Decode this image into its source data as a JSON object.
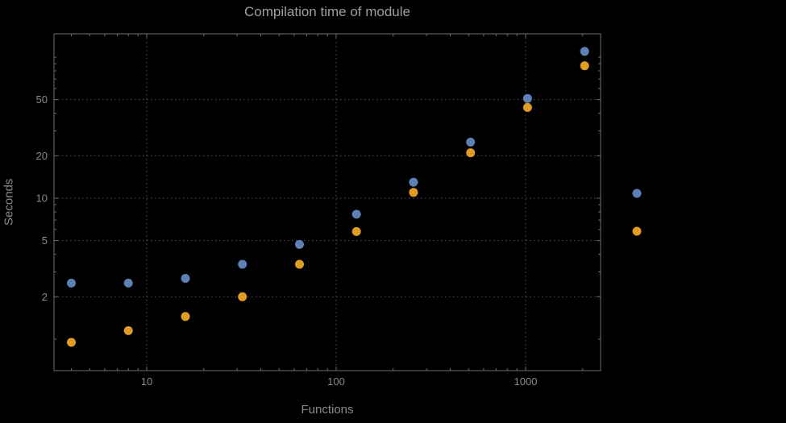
{
  "chart_data": {
    "type": "scatter",
    "title": "Compilation time of module",
    "xlabel": "Functions",
    "ylabel": "Seconds",
    "x_scale": "log",
    "y_scale": "log",
    "grid": "dotted",
    "xlim": [
      3.2,
      2500
    ],
    "ylim": [
      0.6,
      150
    ],
    "x_ticks": [
      10,
      100,
      1000
    ],
    "y_ticks": [
      2,
      5,
      10,
      20,
      50
    ],
    "x": [
      4,
      8,
      16,
      32,
      64,
      128,
      256,
      512,
      1024,
      2048
    ],
    "series": [
      {
        "id": "blue-series",
        "color": "#5e81b5",
        "values": [
          2.5,
          2.5,
          2.7,
          3.4,
          4.7,
          7.7,
          13,
          25,
          51,
          110
        ]
      },
      {
        "id": "orange-series",
        "color": "#e09c24",
        "values": [
          0.95,
          1.15,
          1.45,
          2.0,
          3.4,
          5.8,
          11,
          21,
          44,
          87
        ]
      }
    ],
    "legend": {
      "position": "right-outside",
      "labels_visible": false,
      "marker_series": [
        "blue-series",
        "orange-series"
      ]
    },
    "background": "#000000",
    "frame_color": "#6e6e6e",
    "grid_color": "#565656",
    "text_color": "#8a8a8a"
  }
}
